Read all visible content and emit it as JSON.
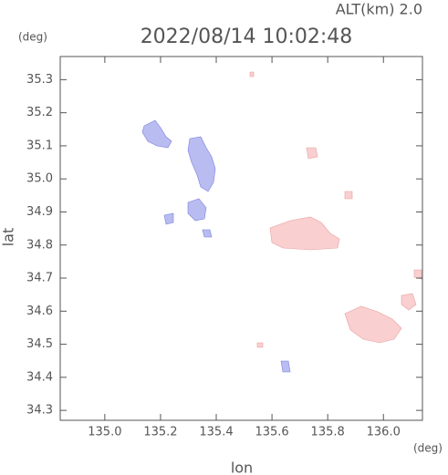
{
  "chart_data": {
    "type": "map",
    "title": "2022/08/14 10:02:48",
    "altitude_label": "ALT(km) 2.0",
    "y_unit": "(deg)",
    "x_unit": "(deg)",
    "ylabel": "lat",
    "xlabel": "lon",
    "xlim": [
      134.84,
      136.14
    ],
    "ylim": [
      34.27,
      35.37
    ],
    "xticks": [
      {
        "value": 135.0,
        "label": "135.0"
      },
      135.2,
      135.4,
      135.6,
      135.8,
      {
        "value": 136.0,
        "label": "136.0"
      }
    ],
    "yticks": [
      34.3,
      34.4,
      34.5,
      34.6,
      34.7,
      34.8,
      34.9,
      {
        "value": 35.0,
        "label": "35.0"
      },
      35.1,
      35.2,
      35.3
    ]
  }
}
